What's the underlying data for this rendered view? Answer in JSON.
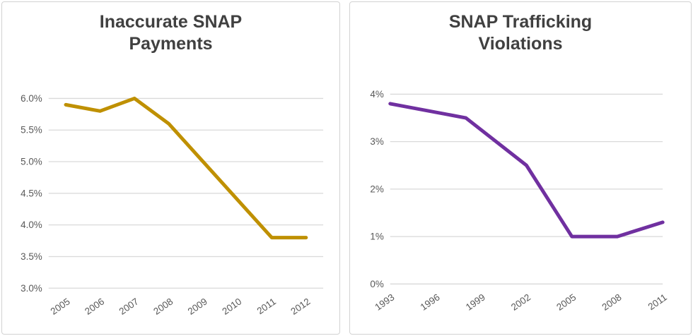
{
  "colors": {
    "background": "#FFFFFF",
    "panel_border": "#D2D2D2",
    "title": "#404040",
    "axis_label": "#595959",
    "gridline": "#D9D9D9"
  },
  "chart_data": [
    {
      "type": "line",
      "title": "Inaccurate SNAP Payments",
      "categories": [
        "2005",
        "2006",
        "2007",
        "2008",
        "2009",
        "2010",
        "2011",
        "2012"
      ],
      "values": [
        5.9,
        5.8,
        6.0,
        5.6,
        5.0,
        4.4,
        3.8,
        3.8
      ],
      "value_unit": "%",
      "ylim": [
        3.0,
        6.0
      ],
      "ytick_labels": [
        "6.0%",
        "5.5%",
        "5.0%",
        "4.5%",
        "4.0%",
        "3.5%",
        "3.0%"
      ],
      "xlabel": "",
      "ylabel": "",
      "legend": "none",
      "grid": true,
      "line_color": "#BF9000",
      "point_placement": "between"
    },
    {
      "type": "line",
      "title": "SNAP Trafficking Violations",
      "x": [
        1993,
        1998,
        2002,
        2005,
        2008,
        2011
      ],
      "values": [
        3.8,
        3.5,
        2.5,
        1.0,
        1.0,
        1.3
      ],
      "value_unit": "%",
      "xlim": [
        1993,
        2011
      ],
      "xtick_labels": [
        "1993",
        "1996",
        "1999",
        "2002",
        "2005",
        "2008",
        "2011"
      ],
      "ylim": [
        0,
        4
      ],
      "ytick_labels": [
        "4%",
        "3%",
        "2%",
        "1%",
        "0%"
      ],
      "xlabel": "",
      "ylabel": "",
      "legend": "none",
      "grid": true,
      "line_color": "#7030A0",
      "point_placement": "on"
    }
  ]
}
